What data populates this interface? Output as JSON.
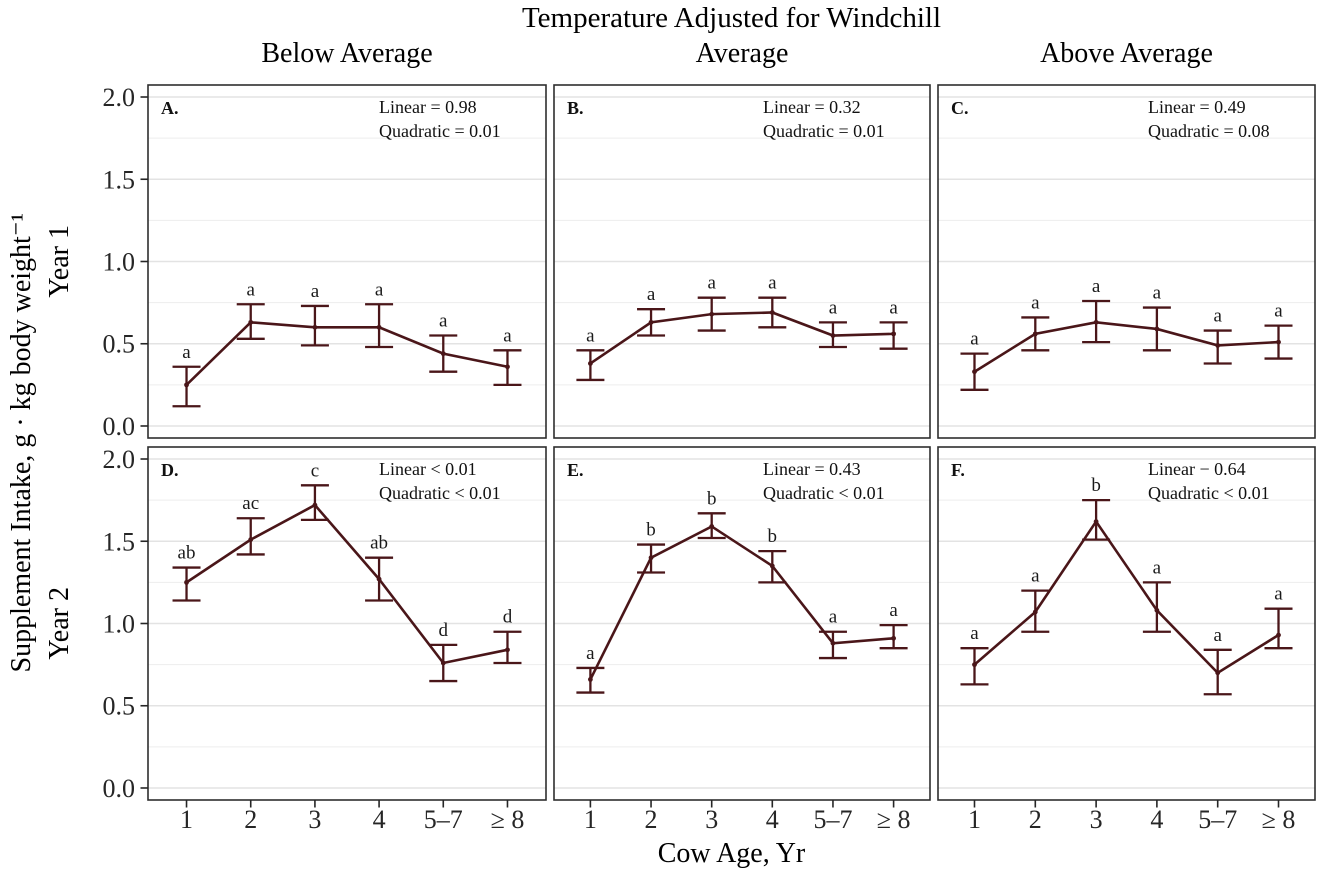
{
  "figure": {
    "title": "Temperature Adjusted for Windchill",
    "col_headers": [
      "Below Average",
      "Average",
      "Above Average"
    ],
    "row_headers": [
      "Year 1",
      "Year 2"
    ],
    "y_axis_label": "Supplement Intake, g · kg body weight⁻¹",
    "x_axis_label": "Cow Age, Yr"
  },
  "chart_data": {
    "type": "line",
    "error_bars": true,
    "categories": [
      "1",
      "2",
      "3",
      "4",
      "5–7",
      "≥ 8"
    ],
    "xlabel": "Cow Age, Yr",
    "ylabel": "Supplement Intake, g · kg body weight⁻¹",
    "ylim": [
      0,
      2
    ],
    "y_ticks": [
      {
        "value": 2.0,
        "label": "2.0"
      },
      {
        "value": 1.5,
        "label": "1.5"
      },
      {
        "value": 1.0,
        "label": "1.0"
      },
      {
        "value": 0.5,
        "label": "0.5"
      },
      {
        "value": 0.0,
        "label": "0.0"
      }
    ],
    "grid": "horizontal major+minor, minor step 0.25",
    "legend": "none",
    "facets": {
      "rows": [
        "Year 1",
        "Year 2"
      ],
      "cols": [
        "Below Average",
        "Average",
        "Above Average"
      ]
    },
    "panels": [
      {
        "id": "A.",
        "row": "Year 1",
        "col": "Below Average",
        "stats": [
          "Linear = 0.98",
          "Quadratic = 0.01"
        ],
        "means": [
          0.25,
          0.63,
          0.6,
          0.6,
          0.44,
          0.36
        ],
        "upper": [
          0.36,
          0.74,
          0.73,
          0.74,
          0.55,
          0.46
        ],
        "lower": [
          0.12,
          0.53,
          0.49,
          0.48,
          0.33,
          0.25
        ],
        "letters": [
          "a",
          "a",
          "a",
          "a",
          "a",
          "a"
        ]
      },
      {
        "id": "B.",
        "row": "Year 1",
        "col": "Average",
        "stats": [
          "Linear = 0.32",
          "Quadratic = 0.01"
        ],
        "means": [
          0.38,
          0.63,
          0.68,
          0.69,
          0.55,
          0.56
        ],
        "upper": [
          0.46,
          0.71,
          0.78,
          0.78,
          0.63,
          0.63
        ],
        "lower": [
          0.28,
          0.55,
          0.58,
          0.6,
          0.48,
          0.47
        ],
        "letters": [
          "a",
          "a",
          "a",
          "a",
          "a",
          "a"
        ]
      },
      {
        "id": "C.",
        "row": "Year 1",
        "col": "Above Average",
        "stats": [
          "Linear = 0.49",
          "Quadratic = 0.08"
        ],
        "means": [
          0.33,
          0.56,
          0.63,
          0.59,
          0.49,
          0.51
        ],
        "upper": [
          0.44,
          0.66,
          0.76,
          0.72,
          0.58,
          0.61
        ],
        "lower": [
          0.22,
          0.46,
          0.51,
          0.46,
          0.38,
          0.41
        ],
        "letters": [
          "a",
          "a",
          "a",
          "a",
          "a",
          "a"
        ]
      },
      {
        "id": "D.",
        "row": "Year 2",
        "col": "Below Average",
        "stats": [
          "Linear < 0.01",
          "Quadratic < 0.01"
        ],
        "means": [
          1.25,
          1.51,
          1.72,
          1.27,
          0.76,
          0.84
        ],
        "upper": [
          1.34,
          1.64,
          1.84,
          1.4,
          0.87,
          0.95
        ],
        "lower": [
          1.14,
          1.42,
          1.63,
          1.14,
          0.65,
          0.76
        ],
        "letters": [
          "ab",
          "ac",
          "c",
          "ab",
          "d",
          "d"
        ]
      },
      {
        "id": "E.",
        "row": "Year 2",
        "col": "Average",
        "stats": [
          "Linear = 0.43",
          "Quadratic < 0.01"
        ],
        "means": [
          0.66,
          1.4,
          1.59,
          1.35,
          0.88,
          0.91
        ],
        "upper": [
          0.73,
          1.48,
          1.67,
          1.44,
          0.95,
          0.99
        ],
        "lower": [
          0.58,
          1.31,
          1.52,
          1.25,
          0.79,
          0.85
        ],
        "letters": [
          "a",
          "b",
          "b",
          "b",
          "a",
          "a"
        ]
      },
      {
        "id": "F.",
        "row": "Year 2",
        "col": "Above Average",
        "stats": [
          "Linear − 0.64",
          "Quadratic < 0.01"
        ],
        "means": [
          0.75,
          1.07,
          1.62,
          1.08,
          0.7,
          0.93
        ],
        "upper": [
          0.85,
          1.2,
          1.75,
          1.25,
          0.84,
          1.09
        ],
        "lower": [
          0.63,
          0.95,
          1.51,
          0.95,
          0.57,
          0.85
        ],
        "letters": [
          "a",
          "a",
          "b",
          "a",
          "a",
          "a"
        ]
      }
    ],
    "colors": {
      "series_line": "#4a1619",
      "grid_major": "#e3e3e3",
      "grid_minor": "#ededed",
      "panel_border": "#2e2e2e",
      "tick": "#262626",
      "stats_text": "#111111",
      "sig_letter": "#1a1a1a"
    }
  }
}
